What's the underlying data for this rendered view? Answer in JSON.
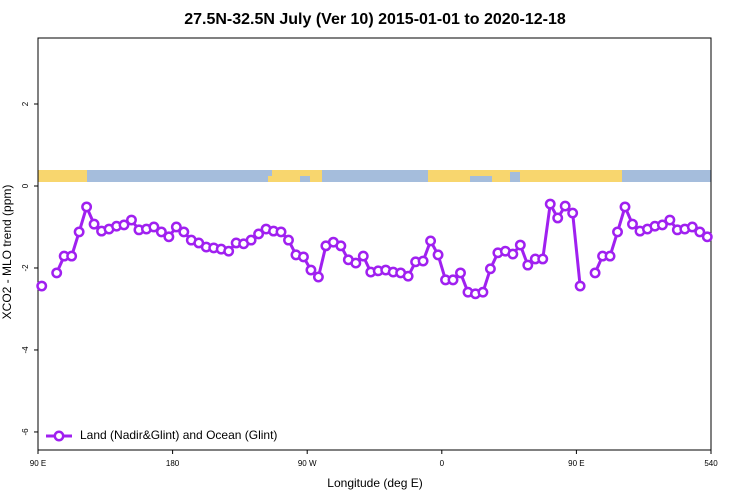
{
  "chart_data": {
    "type": "line",
    "title": "27.5N-32.5N July (Ver 10)   2015-01-01 to 2020-12-18",
    "x_label": "Longitude (deg E)",
    "y_label": "XCO2 - MLO trend (ppm)",
    "x": [
      92.5,
      97.5,
      102.5,
      107.5,
      112.5,
      117.5,
      122.5,
      127.5,
      132.5,
      137.5,
      142.5,
      147.5,
      152.5,
      157.5,
      162.5,
      167.5,
      172.5,
      177.5,
      182.5,
      187.5,
      192.5,
      197.5,
      202.5,
      207.5,
      212.5,
      217.5,
      222.5,
      227.5,
      232.5,
      237.5,
      242.5,
      247.5,
      252.5,
      257.5,
      262.5,
      267.5,
      272.5,
      277.5,
      282.5,
      287.5,
      292.5,
      297.5,
      302.5,
      307.5,
      312.5,
      317.5,
      322.5,
      327.5,
      332.5,
      337.5,
      342.5,
      347.5,
      352.5,
      357.5,
      362.5,
      367.5,
      372.5,
      377.5,
      382.5,
      387.5,
      392.5,
      397.5,
      402.5,
      407.5,
      412.5,
      417.5,
      422.5,
      427.5,
      432.5,
      437.5,
      442.5,
      447.5,
      452.5,
      457.5,
      462.5,
      467.5,
      472.5,
      477.5,
      482.5,
      487.5,
      492.5,
      497.5,
      502.5,
      507.5,
      512.5,
      517.5,
      522.5,
      527.5,
      532.5,
      537.5
    ],
    "series": [
      {
        "name": "Land (Nadir&Glint) and Ocean (Glint)",
        "color": "#a020f0",
        "values": [
          -2.44,
          null,
          -2.12,
          -1.71,
          -1.71,
          -1.12,
          -0.51,
          -0.93,
          -1.1,
          -1.05,
          -0.98,
          -0.95,
          -0.83,
          -1.07,
          -1.05,
          -1.0,
          -1.12,
          -1.24,
          -1.0,
          -1.12,
          -1.32,
          -1.39,
          -1.49,
          -1.51,
          -1.54,
          -1.59,
          -1.39,
          -1.41,
          -1.32,
          -1.17,
          -1.05,
          -1.1,
          -1.12,
          -1.32,
          -1.68,
          -1.73,
          -2.05,
          -2.22,
          -1.46,
          -1.37,
          -1.46,
          -1.8,
          -1.88,
          -1.71,
          -2.1,
          -2.07,
          -2.05,
          -2.1,
          -2.12,
          -2.2,
          -1.85,
          -1.83,
          -1.34,
          -1.68,
          -2.29,
          -2.29,
          -2.12,
          -2.59,
          -2.63,
          -2.59,
          -2.02,
          -1.63,
          -1.59,
          -1.66,
          -1.44,
          -1.93,
          -1.78,
          -1.78,
          -0.44,
          -0.78,
          -0.49,
          -0.66,
          -2.44,
          null,
          -2.12,
          -1.71,
          -1.71,
          -1.12,
          -0.51,
          -0.93,
          -1.1,
          -1.05,
          -0.98,
          -0.95,
          -0.83,
          -1.07,
          -1.05,
          -1.0,
          -1.12,
          -1.24
        ]
      }
    ],
    "xlim": [
      90,
      540
    ],
    "xticks": [
      {
        "value": 90,
        "label": "90 E"
      },
      180,
      {
        "value": 270,
        "label": "90 W"
      },
      {
        "value": 360,
        "label": "0"
      },
      {
        "value": 450,
        "label": "90 E"
      },
      540
    ],
    "ylim": [
      -6.44,
      3.61
    ],
    "yticks": [
      -6,
      -4,
      -2,
      0,
      2
    ],
    "legend": "bottom-left"
  }
}
